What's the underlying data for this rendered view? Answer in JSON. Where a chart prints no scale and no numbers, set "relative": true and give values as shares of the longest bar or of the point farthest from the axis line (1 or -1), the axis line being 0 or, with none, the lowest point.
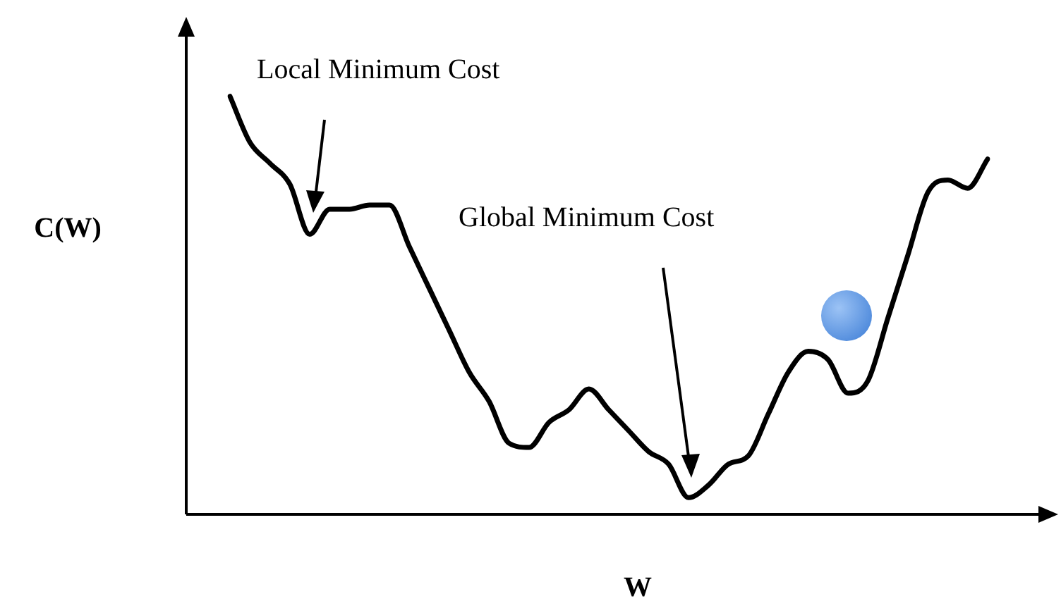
{
  "chart_data": {
    "type": "line",
    "relative": true,
    "xlabel": "W",
    "ylabel": "C(W)",
    "legend": false,
    "marker": "none",
    "line_style": "solid",
    "categories": [
      null,
      null,
      null,
      null,
      null,
      null,
      null,
      null,
      null,
      null,
      null,
      null,
      null,
      null,
      null,
      null,
      null,
      null,
      null,
      null,
      null,
      null,
      null,
      null,
      null,
      null,
      null,
      null,
      null,
      null,
      null,
      null,
      null,
      null,
      null,
      null,
      null,
      null,
      null
    ],
    "series": [
      {
        "color": "#000000",
        "values": [
          1.0,
          0.89,
          0.84,
          0.79,
          0.67,
          0.73,
          0.73,
          0.74,
          0.74,
          0.64,
          0.54,
          0.44,
          0.34,
          0.27,
          0.17,
          0.16,
          0.22,
          0.25,
          0.3,
          0.25,
          0.2,
          0.15,
          0.12,
          0.04,
          0.07,
          0.12,
          0.14,
          0.24,
          0.34,
          0.39,
          0.37,
          0.29,
          0.32,
          0.47,
          0.62,
          0.77,
          0.8,
          0.78,
          0.85
        ]
      }
    ],
    "annotations": [
      "Local Minimum Cost",
      "Global Minimum Cost"
    ]
  }
}
